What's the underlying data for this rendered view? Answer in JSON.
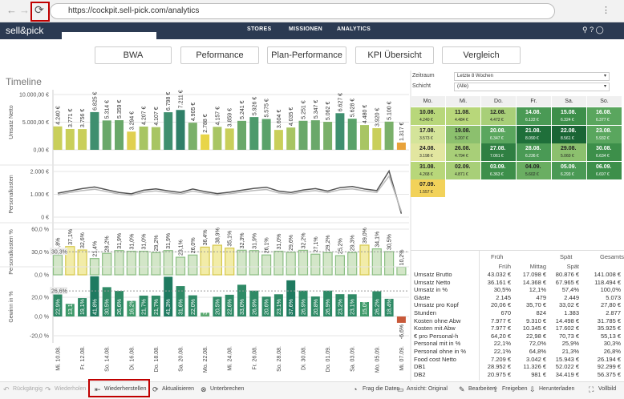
{
  "browser": {
    "url": "https://cockpit.sell-pick.com/analytics"
  },
  "header": {
    "logo": "sell&pick",
    "nav": [
      "STORES",
      "MISSIONEN",
      "ANALYTICS"
    ]
  },
  "tabs": [
    "BWA",
    "Peformance",
    "Plan-Performance",
    "KPI Übersicht",
    "Vergleich"
  ],
  "timeline_title": "Timeline",
  "chart_data": [
    {
      "type": "bar",
      "ylabel": "Umsatz Netto",
      "values": [
        4240,
        3771,
        3756,
        6825,
        5314,
        5359,
        3294,
        4207,
        4107,
        6798,
        7211,
        4905,
        2788,
        4157,
        3859,
        5241,
        5926,
        5575,
        3604,
        4035,
        5251,
        5347,
        5062,
        6627,
        5628,
        4480,
        3920,
        5100,
        1317
      ],
      "value_labels": [
        "4.240 €",
        "3.771 €",
        "3.756 €",
        "6.825 €",
        "5.314 €",
        "5.359 €",
        "3.294 €",
        "4.207 €",
        "4.107 €",
        "6.798 €",
        "7.211 €",
        "4.905 €",
        "2.788 €",
        "4.157 €",
        "3.859 €",
        "5.241 €",
        "5.926 €",
        "5.575 €",
        "3.604 €",
        "4.035 €",
        "5.251 €",
        "5.347 €",
        "5.062 €",
        "6.627 €",
        "5.628 €",
        "4.480 €",
        "3.920 €",
        "5.100 €",
        "1.317 €"
      ],
      "colors": [
        "#c9cf5a",
        "#c9cf5a",
        "#c9cf5a",
        "#3f8f6f",
        "#6aa86a",
        "#6aa86a",
        "#e0d050",
        "#a8c563",
        "#a8c563",
        "#3f8f6f",
        "#2f7f68",
        "#7ab06a",
        "#e8d548",
        "#a8c563",
        "#c9cf5a",
        "#6aa86a",
        "#4d9a6c",
        "#5aa26a",
        "#c9cf5a",
        "#a8c563",
        "#6aa86a",
        "#6aa86a",
        "#7ab06a",
        "#3f8f6f",
        "#5aa26a",
        "#a8c563",
        "#c9cf5a",
        "#7ab06a",
        "#e8a23a"
      ],
      "ylim": [
        0,
        10000
      ],
      "yticks": [
        {
          "value": 0,
          "label": "0,00 €"
        },
        {
          "value": 5000,
          "label": "5.000,00 €"
        },
        {
          "value": 10000,
          "label": "10.000,00 €"
        }
      ],
      "grid": true
    },
    {
      "type": "line",
      "ylabel": "Personalkosten",
      "series": [
        {
          "color": "#555555",
          "values": [
            1050,
            1150,
            1250,
            1320,
            1200,
            1080,
            1020,
            1180,
            1240,
            1150,
            1080,
            1230,
            1120,
            1030,
            1090,
            1180,
            1260,
            1310,
            1140,
            1080,
            1190,
            1250,
            1140,
            1290,
            1340,
            1230,
            1160,
            2020,
            150
          ]
        },
        {
          "color": "#bbbbbb",
          "values": [
            980,
            1080,
            1160,
            1220,
            1120,
            1010,
            960,
            1090,
            1150,
            1070,
            1010,
            1140,
            1050,
            970,
            1020,
            1100,
            1170,
            1210,
            1060,
            1010,
            1110,
            1160,
            1070,
            1200,
            1240,
            1150,
            1080,
            1800,
            250
          ]
        }
      ],
      "ylim": [
        0,
        2000
      ],
      "yticks": [
        {
          "value": 0,
          "label": "0 €"
        },
        {
          "value": 1000,
          "label": "1.000 €"
        },
        {
          "value": 2000,
          "label": "2.000 €"
        }
      ],
      "grid": true
    },
    {
      "type": "bar",
      "ylabel": "Personalkosten %",
      "values": [
        25.8,
        37.1,
        32.6,
        21.4,
        28.2,
        31.9,
        31.0,
        31.0,
        29.2,
        31.9,
        23.1,
        26.0,
        36.4,
        38.9,
        35.1,
        32.3,
        31.9,
        26.1,
        31.0,
        29.6,
        32.2,
        27.1,
        29.2,
        25.2,
        29.3,
        39.0,
        34.1,
        30.5,
        10.2
      ],
      "value_labels": [
        "25,8%",
        "37,1%",
        "32,6%",
        "21,4%",
        "28,2%",
        "31,9%",
        "31,0%",
        "31,0%",
        "29,2%",
        "31,9%",
        "23,1%",
        "26,0%",
        "36,4%",
        "38,9%",
        "35,1%",
        "32,3%",
        "31,9%",
        "26,1%",
        "31,0%",
        "29,6%",
        "32,2%",
        "27,1%",
        "29,2%",
        "25,2%",
        "29,3%",
        "39,0%",
        "34,1%",
        "30,5%",
        "10,2%"
      ],
      "colors": [
        "#d3e6c8",
        "#f2eca8",
        "#f2eca8",
        "#d3e6c8",
        "#d3e6c8",
        "#d3e6c8",
        "#d3e6c8",
        "#d3e6c8",
        "#d3e6c8",
        "#d3e6c8",
        "#d3e6c8",
        "#d3e6c8",
        "#f2eca8",
        "#f2eca8",
        "#f2eca8",
        "#d3e6c8",
        "#d3e6c8",
        "#d3e6c8",
        "#d3e6c8",
        "#d3e6c8",
        "#d3e6c8",
        "#d3e6c8",
        "#d3e6c8",
        "#d3e6c8",
        "#d3e6c8",
        "#f2eca8",
        "#d3e6c8",
        "#d3e6c8",
        "#d3e6c8"
      ],
      "reference": {
        "value": 30.3,
        "label": "30,3%"
      },
      "ylim": [
        0,
        60
      ],
      "yticks": [
        {
          "value": 0,
          "label": "0,0 %"
        },
        {
          "value": 30,
          "label": "30,0 %"
        },
        {
          "value": 60,
          "label": "60,0 %"
        }
      ],
      "grid": true
    },
    {
      "type": "bar",
      "ylabel": "Gewinn in %",
      "categories": [
        "Mi. 10.08.",
        null,
        "Fr. 12.08.",
        null,
        "So. 14.08.",
        null,
        "Di. 16.08.",
        null,
        "Do. 18.08.",
        null,
        "Sa. 20.08.",
        null,
        "Mo. 22.08.",
        null,
        "Mi. 24.08.",
        null,
        "Fr. 26.08.",
        null,
        "So. 28.08.",
        null,
        "Di. 30.08.",
        null,
        "Do. 01.09.",
        null,
        "Sa. 03.09.",
        null,
        "Mo. 05.09.",
        null,
        "Mi. 07.09."
      ],
      "values": [
        22.9,
        13.1,
        19.1,
        41.8,
        30.5,
        26.6,
        16.2,
        21.7,
        21.7,
        41.3,
        31.6,
        22.0,
        3.9,
        20.5,
        22.6,
        33.0,
        26.9,
        20.6,
        23.1,
        37.6,
        26.9,
        20.8,
        26.9,
        23.2,
        23.1,
        15.0,
        26.2,
        18.4,
        -6.6
      ],
      "value_labels": [
        "22,9%",
        "13,1%",
        "19,1%",
        "41,8%",
        "30,5%",
        "26,6%",
        "16,2%",
        "21,7%",
        "21,7%",
        "41,3%",
        "31,6%",
        "22,0%",
        "3,9%",
        "20,5%",
        "22,6%",
        "33,0%",
        "26,9%",
        "20,6%",
        "23,1%",
        "37,6%",
        "26,9%",
        "20,8%",
        "26,9%",
        "23,2%",
        "23,1%",
        "15,0%",
        "26,2%",
        "18,4%",
        "-6,6%"
      ],
      "colors": [
        "#2f8a66",
        "#3f9a6a",
        "#2f8a66",
        "#1f7a60",
        "#2f8a66",
        "#2f8a66",
        "#3f9a6a",
        "#2f8a66",
        "#2f8a66",
        "#1f7a60",
        "#2f8a66",
        "#2f8a66",
        "#5aa870",
        "#2f8a66",
        "#2f8a66",
        "#2f8a66",
        "#2f8a66",
        "#2f8a66",
        "#2f8a66",
        "#1f7a60",
        "#2f8a66",
        "#2f8a66",
        "#2f8a66",
        "#2f8a66",
        "#2f8a66",
        "#3f9a6a",
        "#2f8a66",
        "#2f8a66",
        "#c8593a"
      ],
      "reference": {
        "value": 26.6,
        "label": "26,6%"
      },
      "ylim": [
        -25,
        45
      ],
      "yticks": [
        {
          "value": -20,
          "label": "-20,0 %"
        },
        {
          "value": 0,
          "label": "0,0 %"
        },
        {
          "value": 20,
          "label": "20,0 %"
        }
      ],
      "grid": true
    }
  ],
  "filters": [
    {
      "label": "Zeitraum",
      "value": "Letzte 8 Wochen"
    },
    {
      "label": "Schicht",
      "value": "(Alle)"
    }
  ],
  "calendar": {
    "columns": [
      "Mo.",
      "Mi.",
      "Do.",
      "Fr.",
      "Sa.",
      "So."
    ],
    "rows": [
      [
        {
          "date": "10.08.",
          "value": "4.240 €",
          "color": "#b8d77a"
        },
        {
          "date": "11.08.",
          "value": "4.484 €",
          "color": "#b8d77a"
        },
        {
          "date": "12.08.",
          "value": "4.472 €",
          "color": "#a8cf78"
        },
        {
          "date": "14.08.",
          "value": "6.122 €",
          "color": "#4a9a55"
        },
        {
          "date": "15.08.",
          "value": "6.324 €",
          "color": "#3d8f4a"
        },
        {
          "date": "16.08.",
          "value": "6.377 €",
          "color": "#5aa65e"
        }
      ],
      [
        {
          "date": "17.08.",
          "value": "3.573 €",
          "color": "#d4e49a"
        },
        {
          "date": "19.08.",
          "value": "5.207 €",
          "color": "#8cc06e"
        },
        {
          "date": "20.08.",
          "value": "6.347 €",
          "color": "#5aa65e"
        },
        {
          "date": "21.08.",
          "value": "8.090 €",
          "color": "#1f6f3a"
        },
        {
          "date": "22.08.",
          "value": "8.561 €",
          "color": "#1a6535"
        },
        {
          "date": "23.08.",
          "value": "5.932 €",
          "color": "#5aa65e"
        }
      ],
      [
        {
          "date": "24.08.",
          "value": "3.198 €",
          "color": "#e2e6a0"
        },
        {
          "date": "26.08.",
          "value": "4.794 €",
          "color": "#a8cf78"
        },
        {
          "date": "27.08.",
          "value": "7.061 €",
          "color": "#2f7f42"
        },
        {
          "date": "28.08.",
          "value": "6.236 €",
          "color": "#4a9a55"
        },
        {
          "date": "29.08.",
          "value": "5.060 €",
          "color": "#8cc06e"
        },
        {
          "date": "30.08.",
          "value": "6.634 €",
          "color": "#3d8f4a"
        }
      ],
      [
        {
          "date": "31.08.",
          "value": "4.268 €",
          "color": "#b8d77a"
        },
        {
          "date": "02.09.",
          "value": "4.871 €",
          "color": "#a8cf78"
        },
        {
          "date": "03.09.",
          "value": "6.363 €",
          "color": "#3d8f4a"
        },
        {
          "date": "04.09.",
          "value": "5.602 €",
          "color": "#6aae62"
        },
        {
          "date": "05.09.",
          "value": "6.293 €",
          "color": "#4a9a55"
        },
        {
          "date": "06.09.",
          "value": "6.697 €",
          "color": "#3d8f4a"
        }
      ],
      [
        {
          "date": "07.09.",
          "value": "1.557 €",
          "color": "#f2d25a"
        }
      ]
    ]
  },
  "table": {
    "group_header": [
      "Früh",
      "Spät",
      "Gesamts..."
    ],
    "header": [
      "Früh",
      "Mittag",
      "Spät"
    ],
    "rows": [
      [
        "Umsatz Brutto",
        "43.032 €",
        "17.098 €",
        "80.876 €",
        "141.008 €"
      ],
      [
        "Umsatz Netto",
        "36.161 €",
        "14.368 €",
        "67.965 €",
        "118.494 €"
      ],
      [
        "Umsatz in %",
        "30,5%",
        "12,1%",
        "57,4%",
        "100,0%"
      ],
      [
        "Gäste",
        "2.145",
        "479",
        "2.449",
        "5.073"
      ],
      [
        "Umsatz pro Kopf",
        "20,06 €",
        "35,70 €",
        "33,02 €",
        "27,80 €"
      ],
      [
        "Stunden",
        "670",
        "824",
        "1.383",
        "2.877"
      ],
      [
        "Kosten ohne Abw",
        "7.977 €",
        "9.310 €",
        "14.498 €",
        "31.785 €"
      ],
      [
        "Kosten mit Abw",
        "7.977 €",
        "10.345 €",
        "17.602 €",
        "35.925 €"
      ],
      [
        "€ pro Personal-h",
        "64,20 €",
        "22,98 €",
        "70,73 €",
        "55,13 €"
      ],
      [
        "Personal mit in %",
        "22,1%",
        "72,0%",
        "25,9%",
        "30,3%"
      ],
      [
        "Personal ohne in %",
        "22,1%",
        "64,8%",
        "21,3%",
        "26,8%"
      ],
      [
        "Food cost Netto",
        "7.209 €",
        "3.042 €",
        "15.943 €",
        "26.194 €"
      ],
      [
        "DB1",
        "28.952 €",
        "11.326 €",
        "52.022 €",
        "92.299 €"
      ],
      [
        "DB2",
        "20.975 €",
        "981 €",
        "34.419 €",
        "56.375 €"
      ]
    ]
  },
  "toolbar": [
    "Rückgängig",
    "Wiederholen",
    "Wiederherstellen",
    "Aktualisieren",
    "Unterbrechen",
    "Frag die Daten",
    "Ansicht: Original",
    "Bearbeiten",
    "Freigeben",
    "Herunterladen",
    "Vollbild"
  ]
}
